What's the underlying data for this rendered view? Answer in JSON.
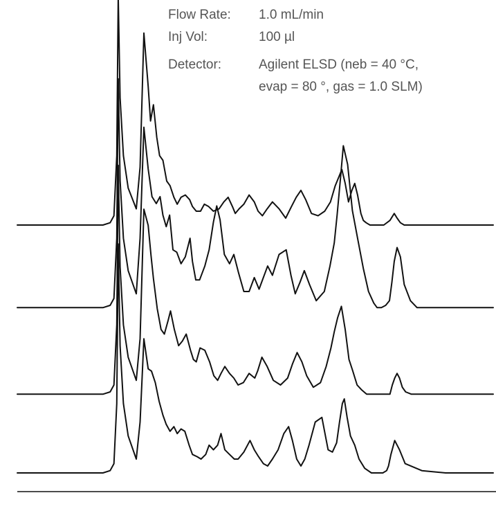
{
  "conditions": {
    "rows": [
      {
        "label": "Flow Rate:",
        "value": "1.0 mL/min"
      },
      {
        "label": "Inj Vol:",
        "value": "100 µl"
      },
      {
        "label": "Detector:",
        "value": "Agilent ELSD (neb = 40 °C,"
      },
      {
        "label": "",
        "value": "evap = 80 °, gas = 1.0 SLM)"
      }
    ]
  },
  "colors": {
    "trace": "#111111",
    "text": "#555555",
    "background": "#ffffff"
  },
  "chart_data": {
    "type": "line",
    "title": "",
    "xlabel": "",
    "ylabel": "",
    "xlim": [
      0,
      100
    ],
    "ylim": [
      0,
      100
    ],
    "grid": false,
    "legend": "none",
    "series": [
      {
        "name": "",
        "offset": 78,
        "x": [
          0,
          18,
          19.5,
          20.3,
          20.9,
          21.2,
          21.6,
          22.3,
          23.3,
          25,
          25.8,
          26.6,
          27.5,
          28,
          28.6,
          29.3,
          29.9,
          30.6,
          31.4,
          32.1,
          32.9,
          33.6,
          34.4,
          35.3,
          36.2,
          36.8,
          37.6,
          38.5,
          39.3,
          40.2,
          41.2,
          42.4,
          43.4,
          44.3,
          45.2,
          45.8,
          46.6,
          47.6,
          48.7,
          49.8,
          50.6,
          51.5,
          52.5,
          53.6,
          55,
          56.4,
          57.6,
          58.6,
          59.6,
          60.6,
          61.8,
          63.2,
          64.6,
          65.8,
          66.8,
          67.6,
          68.2,
          68.9,
          69.6,
          70.3,
          70.9,
          71.5,
          72.2,
          72.7,
          73.3,
          74.1,
          75.3,
          77,
          78.3,
          79.2,
          79.8,
          80.5,
          81.3,
          83,
          90,
          100
        ],
        "y": [
          0,
          0,
          1,
          4,
          30,
          99,
          55,
          30,
          16,
          7,
          25,
          83,
          60,
          45,
          52,
          38,
          30,
          28,
          19,
          17,
          12,
          9,
          12,
          13,
          11,
          8,
          6,
          6,
          9,
          8,
          6,
          7,
          10,
          12,
          8,
          5,
          7,
          9,
          13,
          10,
          6,
          4,
          7,
          10,
          7,
          3,
          8,
          12,
          15,
          11,
          5,
          4,
          6,
          10,
          17,
          21,
          24,
          18,
          10,
          15,
          18,
          13,
          5,
          2,
          1,
          0,
          0,
          0,
          2,
          5,
          3,
          1,
          0,
          0,
          0,
          0
        ]
      },
      {
        "name": "",
        "offset": 57,
        "x": [
          0,
          18,
          19.5,
          20.3,
          20.9,
          21.2,
          21.6,
          22.3,
          23.3,
          25,
          25.8,
          26.6,
          27.5,
          28.3,
          29.2,
          30,
          30.6,
          31.3,
          32,
          32.7,
          33.5,
          34.4,
          35.3,
          36.3,
          36.8,
          37.5,
          38.3,
          39.4,
          40.3,
          41.2,
          41.9,
          42.6,
          43.5,
          44.6,
          45.5,
          46.5,
          47.6,
          48.7,
          49.8,
          50.8,
          51.7,
          52.6,
          53.6,
          55,
          56.5,
          57.5,
          58.4,
          59.4,
          60.3,
          61.4,
          62.8,
          64.5,
          65.7,
          66.6,
          67.2,
          67.9,
          68.5,
          69.4,
          70.4,
          71.5,
          72.7,
          73.8,
          74.9,
          75.6,
          76.5,
          77.4,
          78.2,
          78.7,
          79.2,
          79.8,
          80.5,
          81.3,
          82.6,
          84,
          90,
          100
        ],
        "y": [
          0,
          0,
          1,
          4,
          30,
          99,
          55,
          30,
          16,
          6,
          30,
          78,
          60,
          48,
          45,
          48,
          40,
          35,
          40,
          25,
          24,
          19,
          22,
          30,
          20,
          12,
          12,
          18,
          25,
          37,
          44,
          38,
          23,
          19,
          23,
          15,
          7,
          7,
          13,
          8,
          13,
          18,
          14,
          23,
          25,
          14,
          6,
          11,
          16,
          10,
          3,
          7,
          18,
          28,
          40,
          56,
          70,
          62,
          42,
          30,
          17,
          7,
          2,
          0,
          0,
          1,
          3,
          11,
          20,
          26,
          22,
          10,
          3,
          0,
          0,
          0
        ]
      },
      {
        "name": "",
        "offset": 35,
        "x": [
          0,
          18,
          19.5,
          20.3,
          20.9,
          21.2,
          21.6,
          22.3,
          23.3,
          25,
          25.8,
          26.6,
          27.5,
          28.1,
          28.6,
          29.4,
          30.2,
          30.9,
          31.7,
          32.2,
          33,
          33.9,
          34.7,
          35.5,
          36.4,
          37,
          37.6,
          38.4,
          39.4,
          40.4,
          41.3,
          42.1,
          42.8,
          43.6,
          44.6,
          45.5,
          46.4,
          47.5,
          48.7,
          49.9,
          50.5,
          51.4,
          52.5,
          53.8,
          55.3,
          56.8,
          57.8,
          58.8,
          59.8,
          60.8,
          62.2,
          63.7,
          64.9,
          65.9,
          66.6,
          67.3,
          68.1,
          68.9,
          69.7,
          70.5,
          71.4,
          72.3,
          73.4,
          74.8,
          76.2,
          77.3,
          78.3,
          78.8,
          79.3,
          79.8,
          80.3,
          80.9,
          81.6,
          82.8,
          90,
          100
        ],
        "y": [
          0,
          0,
          1,
          4,
          30,
          99,
          55,
          30,
          16,
          6,
          24,
          80,
          73,
          60,
          50,
          37,
          28,
          26,
          32,
          36,
          28,
          21,
          23,
          26,
          19,
          15,
          14,
          20,
          19,
          14,
          8,
          6,
          9,
          12,
          9,
          7,
          4,
          5,
          9,
          7,
          10,
          16,
          12,
          6,
          4,
          7,
          13,
          18,
          14,
          8,
          3,
          5,
          12,
          20,
          27,
          33,
          38,
          28,
          15,
          10,
          4,
          2,
          0,
          0,
          0,
          0,
          0,
          4,
          7,
          9,
          7,
          3,
          1,
          0,
          0,
          0
        ]
      },
      {
        "name": "",
        "offset": 15,
        "x": [
          0,
          18,
          19.5,
          20.3,
          20.9,
          21.2,
          21.6,
          22.3,
          23.3,
          25,
          25.8,
          26.6,
          27.5,
          28.2,
          29,
          29.8,
          30.6,
          31.3,
          32.1,
          32.9,
          33.6,
          34.4,
          35.2,
          36.1,
          36.8,
          37.8,
          38.6,
          39.6,
          40.3,
          41.2,
          42.1,
          42.8,
          43.6,
          44.6,
          45.6,
          46.4,
          47.6,
          48.9,
          49.8,
          50.7,
          51.7,
          52.6,
          53.6,
          54.8,
          56,
          57,
          57.8,
          58.7,
          59.6,
          60.4,
          61.3,
          62.6,
          64,
          65.3,
          66.2,
          67.1,
          67.7,
          68.3,
          68.7,
          69.3,
          70,
          70.9,
          71.8,
          73,
          74.4,
          75.7,
          76.8,
          77.6,
          78,
          78.5,
          79.3,
          80.3,
          81.5,
          85,
          90,
          100
        ],
        "y": [
          0,
          0,
          1,
          4,
          30,
          99,
          55,
          30,
          16,
          6,
          22,
          58,
          45,
          44,
          39,
          31,
          25,
          21,
          18,
          20,
          17,
          19,
          18,
          12,
          8,
          7,
          6,
          8,
          12,
          10,
          12,
          17,
          10,
          8,
          6,
          6,
          9,
          14,
          10,
          7,
          4,
          3,
          6,
          10,
          17,
          20,
          14,
          6,
          3,
          6,
          12,
          22,
          24,
          10,
          9,
          13,
          22,
          30,
          32,
          24,
          16,
          12,
          6,
          2,
          0,
          0,
          0,
          1,
          3,
          8,
          14,
          10,
          4,
          1,
          0,
          0
        ]
      }
    ]
  }
}
